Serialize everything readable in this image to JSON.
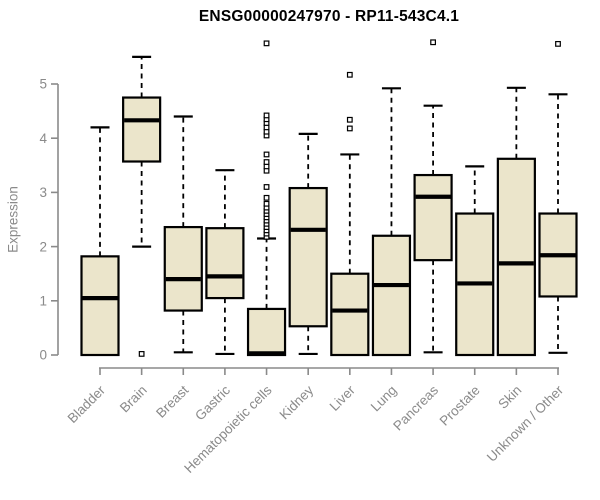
{
  "chart_data": {
    "type": "boxplot",
    "title": "ENSG00000247970 - RP11-543C4.1",
    "ylabel": "Expression",
    "xlabel": "",
    "ylim": [
      0,
      5
    ],
    "yticks": [
      0,
      1,
      2,
      3,
      4,
      5
    ],
    "grid": false,
    "legend": "none",
    "categories": [
      "Bladder",
      "Brain",
      "Breast",
      "Gastric",
      "Hematopoietic cells",
      "Kidney",
      "Liver",
      "Lung",
      "Pancreas",
      "Prostate",
      "Skin",
      "Unknown / Other"
    ],
    "series": [
      {
        "category": "Bladder",
        "whisker_low": 0.0,
        "q1": 0.0,
        "median": 1.05,
        "q3": 1.82,
        "whisker_high": 4.2,
        "outliers": []
      },
      {
        "category": "Brain",
        "whisker_low": 2.0,
        "q1": 3.57,
        "median": 4.33,
        "q3": 4.75,
        "whisker_high": 5.5,
        "outliers": [
          0.02
        ]
      },
      {
        "category": "Breast",
        "whisker_low": 0.05,
        "q1": 0.82,
        "median": 1.4,
        "q3": 2.36,
        "whisker_high": 4.4,
        "outliers": []
      },
      {
        "category": "Gastric",
        "whisker_low": 0.02,
        "q1": 1.05,
        "median": 1.45,
        "q3": 2.34,
        "whisker_high": 3.41,
        "outliers": []
      },
      {
        "category": "Hematopoietic cells",
        "whisker_low": 0.0,
        "q1": 0.0,
        "median": 0.03,
        "q3": 0.85,
        "whisker_high": 2.15,
        "outliers": [
          2.18,
          2.24,
          2.3,
          2.36,
          2.42,
          2.48,
          2.54,
          2.6,
          2.66,
          2.72,
          2.79,
          2.9,
          3.1,
          3.4,
          3.48,
          3.56,
          3.7,
          4.05,
          4.12,
          4.2,
          4.28,
          4.35,
          4.42,
          5.75
        ]
      },
      {
        "category": "Kidney",
        "whisker_low": 0.02,
        "q1": 0.53,
        "median": 2.31,
        "q3": 3.08,
        "whisker_high": 4.08,
        "outliers": []
      },
      {
        "category": "Liver",
        "whisker_low": 0.0,
        "q1": 0.0,
        "median": 0.82,
        "q3": 1.5,
        "whisker_high": 3.7,
        "outliers": [
          4.18,
          4.34,
          5.17
        ]
      },
      {
        "category": "Lung",
        "whisker_low": 0.0,
        "q1": 0.0,
        "median": 1.29,
        "q3": 2.2,
        "whisker_high": 4.92,
        "outliers": []
      },
      {
        "category": "Pancreas",
        "whisker_low": 0.05,
        "q1": 1.75,
        "median": 2.92,
        "q3": 3.32,
        "whisker_high": 4.6,
        "outliers": [
          5.77
        ]
      },
      {
        "category": "Prostate",
        "whisker_low": 0.0,
        "q1": 0.0,
        "median": 1.32,
        "q3": 2.61,
        "whisker_high": 3.48,
        "outliers": []
      },
      {
        "category": "Skin",
        "whisker_low": 0.0,
        "q1": 0.0,
        "median": 1.69,
        "q3": 3.62,
        "whisker_high": 4.93,
        "outliers": []
      },
      {
        "category": "Unknown / Other",
        "whisker_low": 0.04,
        "q1": 1.08,
        "median": 1.84,
        "q3": 2.61,
        "whisker_high": 4.81,
        "outliers": [
          5.74
        ]
      }
    ],
    "colors": {
      "box_fill": "#ebe5cb",
      "box_border": "#000000",
      "median": "#000000",
      "whisker": "#000000",
      "outlier_stroke": "#000000",
      "outlier_fill": "#ffffff",
      "axis": "#8a8a8a",
      "tick_label": "#8a8a8a",
      "title": "#000000"
    }
  }
}
